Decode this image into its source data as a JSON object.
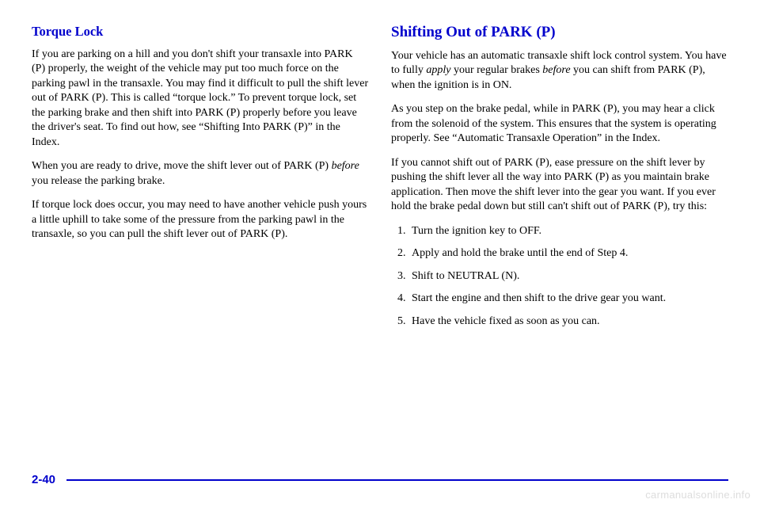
{
  "left": {
    "heading": "Torque Lock",
    "p1a": "If you are parking on a hill and you don't shift your transaxle into PARK (P) properly, the weight of the vehicle may put too much force on the parking pawl in the transaxle. You may find it difficult to pull the shift lever out of PARK (P). This is called “torque lock.” To prevent torque lock, set the parking brake and then shift into PARK (P) properly before you leave the driver's seat. To find out how, see “Shifting Into PARK (P)” in the Index.",
    "p2a": "When you are ready to drive, move the shift lever out of PARK (P) ",
    "p2_ital": "before",
    "p2b": " you release the parking brake.",
    "p3": "If torque lock does occur, you may need to have another vehicle push yours a little uphill to take some of the pressure from the parking pawl in the transaxle, so you can pull the shift lever out of PARK (P)."
  },
  "right": {
    "heading": "Shifting Out of PARK (P)",
    "p1a": "Your vehicle has an automatic transaxle shift lock control system. You have to fully ",
    "p1_ital1": "apply",
    "p1b": " your regular brakes ",
    "p1_ital2": "before",
    "p1c": " you can shift from PARK (P), when the ignition is in ON.",
    "p2": "As you step on the brake pedal, while in PARK (P), you may hear a click from the solenoid of the system. This ensures that the system is operating properly. See “Automatic Transaxle Operation” in the Index.",
    "p3": "If you cannot shift out of PARK (P), ease pressure on the shift lever by pushing the shift lever all the way into PARK (P) as you maintain brake application. Then move the shift lever into the gear you want. If you ever hold the brake pedal down but still can't shift out of PARK (P), try this:",
    "steps": [
      "Turn the ignition key to OFF.",
      "Apply and hold the brake until the end of Step 4.",
      "Shift to NEUTRAL (N).",
      "Start the engine and then shift to the drive gear you want.",
      "Have the vehicle fixed as soon as you can."
    ]
  },
  "page_number": "2-40",
  "watermark": "carmanualsonline.info"
}
